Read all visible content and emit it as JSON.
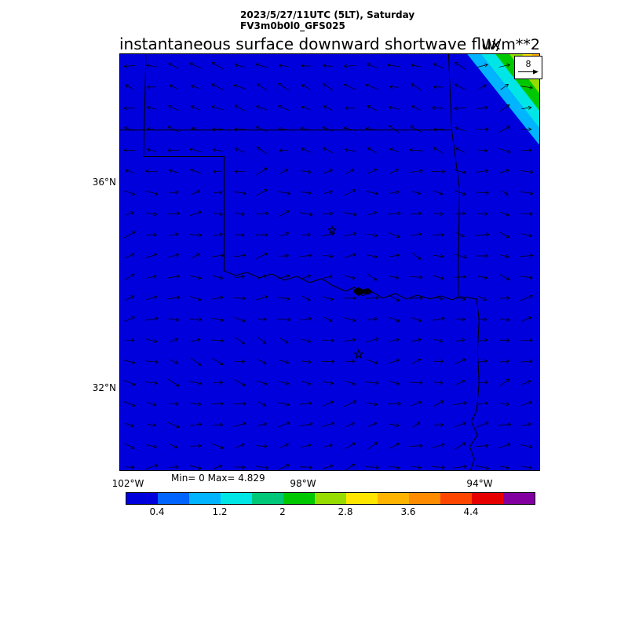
{
  "header": {
    "datetime_line": "2023/5/27/11UTC (5LT), Saturday",
    "model_line": "FV3m0b0l0_GFS025",
    "main_title": "instantaneous surface downward shortwave flux",
    "units_label": "W/m**2"
  },
  "map": {
    "lat_labels": [
      "36°N",
      "32°N"
    ],
    "lon_labels": [
      "102°W",
      "98°W",
      "94°W"
    ],
    "minmax_text": "Min= 0 Max= 4.829",
    "reference_vector_value": "8"
  },
  "colorbar": {
    "tick_labels": [
      "0.4",
      "1.2",
      "2",
      "2.8",
      "3.6",
      "4.4"
    ],
    "colors": [
      "#0000DC",
      "#0064FF",
      "#00B4FF",
      "#00E6E6",
      "#00C878",
      "#00C800",
      "#96DC00",
      "#FFE600",
      "#FFB400",
      "#FF8C00",
      "#FF4600",
      "#E60000",
      "#8200A0"
    ]
  },
  "chart_data": {
    "type": "heatmap",
    "title": "instantaneous surface downward shortwave flux",
    "units": "W/m**2",
    "valid_time": "2023/5/27/11UTC (5LT), Saturday",
    "model_run": "FV3m0b0l0_GFS025",
    "stat_min": 0,
    "stat_max": 4.829,
    "colorbar_levels": [
      0.4,
      0.8,
      1.2,
      1.6,
      2.0,
      2.4,
      2.8,
      3.2,
      3.6,
      4.0,
      4.4,
      4.8
    ],
    "labeled_ticks": [
      0.4,
      1.2,
      2,
      2.8,
      3.6,
      4.4
    ],
    "lat_ticks": [
      "36°N",
      "32°N"
    ],
    "lon_ticks": [
      "102°W",
      "98°W",
      "94°W"
    ],
    "background_field_color": "#0000DC",
    "terminator_band_colors": [
      "#00B4FF",
      "#00E6E6",
      "#00C800",
      "#96DC00",
      "#FFE600",
      "#FFB400"
    ],
    "field_summary": "Flux is 0 (solid blue) over nearly the entire domain; values increase through cyan, green and yellow bands (~0.8 up to ~4.8) in a narrow diagonal strip at the far northeast corner of the map (sunrise terminator). State boundaries (Oklahoma, Texas, Kansas, Arkansas) and two star city markers are drawn over the field.",
    "wind_overlay": {
      "type": "quiver",
      "reference_value": 8,
      "description": "regular grid of small black surface wind arrows over the whole map"
    }
  }
}
